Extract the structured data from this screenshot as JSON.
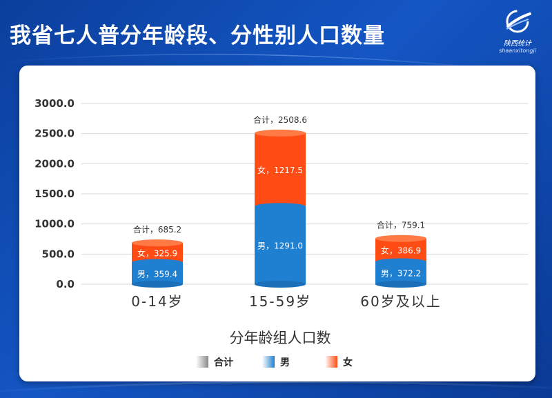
{
  "header": {
    "title": "我省七人普分年龄段、分性别人口数量",
    "logo": {
      "name_cn": "陕西统计",
      "name_en": "shaanxitongji",
      "icon": "shaanxi-stats-logo-icon"
    }
  },
  "colors": {
    "total": "#8a8a8a",
    "male": "#1f7fd0",
    "female": "#ff4b14",
    "background": "#0d48b0"
  },
  "chart_data": {
    "type": "bar",
    "stacked": true,
    "categories": [
      "0-14岁",
      "15-59岁",
      "60岁及以上"
    ],
    "xlabel": "分年龄组人口数",
    "ylabel": "",
    "ylim": [
      0,
      3000
    ],
    "yticks": [
      0,
      500,
      1000,
      1500,
      2000,
      2500,
      3000
    ],
    "ytick_labels": [
      "0.0",
      "500.0",
      "1000.0",
      "1500.0",
      "2000.0",
      "2500.0",
      "3000.0"
    ],
    "grid": true,
    "legend_position": "bottom",
    "series": [
      {
        "name": "男",
        "values": [
          359.4,
          1291.0,
          372.2
        ],
        "labels": [
          "男，359.4",
          "男，1291.0",
          "男，372.2"
        ]
      },
      {
        "name": "女",
        "values": [
          325.9,
          1217.5,
          386.9
        ],
        "labels": [
          "女，325.9",
          "女，1217.5",
          "女，386.9"
        ]
      }
    ],
    "totals": {
      "name": "合计",
      "values": [
        685.2,
        2508.6,
        759.1
      ],
      "labels": [
        "合计，685.2",
        "合计，2508.6",
        "合计，759.1"
      ]
    },
    "legend": [
      {
        "label": "合计",
        "color": "#8a8a8a"
      },
      {
        "label": "男",
        "color": "#1f7fd0"
      },
      {
        "label": "女",
        "color": "#ff4b14"
      }
    ]
  }
}
